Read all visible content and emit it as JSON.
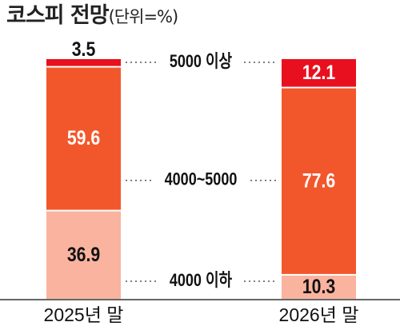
{
  "title": {
    "main": "코스피 전망",
    "unit": "(단위=%)"
  },
  "colors": {
    "above_5000": "#e8101e",
    "between": "#f2572c",
    "below_4000": "#f9b39f",
    "label_dark": "#111111",
    "label_light": "#ffffff",
    "axis": "#333333"
  },
  "chart_data": {
    "type": "bar",
    "stacked": true,
    "unit": "%",
    "categories": [
      "2025년 말",
      "2026년 말"
    ],
    "series": [
      {
        "name": "4000 이하",
        "key": "below_4000",
        "values": [
          36.9,
          10.3
        ]
      },
      {
        "name": "4000~5000",
        "key": "between",
        "values": [
          59.6,
          77.6
        ]
      },
      {
        "name": "5000 이상",
        "key": "above_5000",
        "values": [
          3.5,
          12.1
        ]
      }
    ],
    "ylim": [
      0,
      100
    ],
    "legend": "center, between bars, dotted leader lines"
  }
}
